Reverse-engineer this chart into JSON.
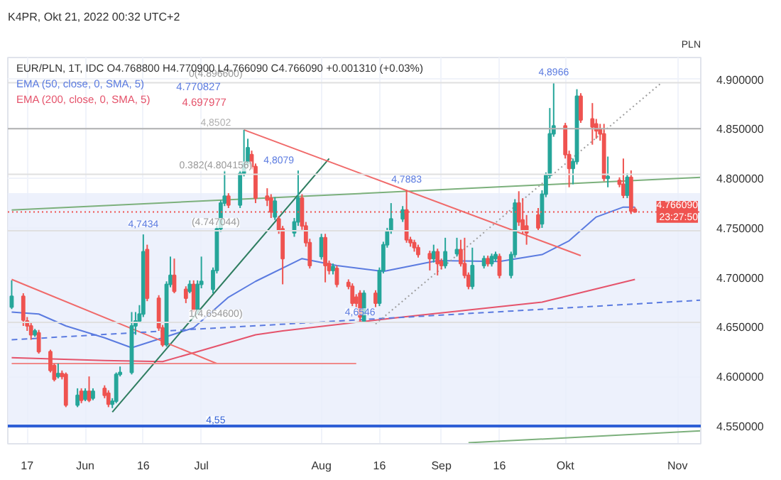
{
  "chart_data": {
    "type": "candlestick",
    "title": "K4PR, Okt 21, 2022 00:32 UTC+2",
    "subtitle": "EUR/PLN, 1T, IDC O4.768800 H4.770900 L4.766090 C4.766090 +0.001310 (+0.03%)",
    "ylabel": "PLN",
    "x": [
      "2022-05-13",
      "2022-05-16",
      "2022-05-17",
      "2022-05-18",
      "2022-05-19",
      "2022-05-20",
      "2022-05-23",
      "2022-05-24",
      "2022-05-25",
      "2022-05-26",
      "2022-05-27",
      "2022-05-30",
      "2022-05-31",
      "2022-06-01",
      "2022-06-02",
      "2022-06-03",
      "2022-06-06",
      "2022-06-07",
      "2022-06-08",
      "2022-06-09",
      "2022-06-10",
      "2022-06-13",
      "2022-06-14",
      "2022-06-15",
      "2022-06-16",
      "2022-06-17",
      "2022-06-20",
      "2022-06-21",
      "2022-06-22",
      "2022-06-23",
      "2022-06-24",
      "2022-06-27",
      "2022-06-28",
      "2022-06-29",
      "2022-06-30",
      "2022-07-01",
      "2022-07-04",
      "2022-07-05",
      "2022-07-06",
      "2022-07-07",
      "2022-07-08",
      "2022-07-11",
      "2022-07-12",
      "2022-07-13",
      "2022-07-14",
      "2022-07-15",
      "2022-07-18",
      "2022-07-19",
      "2022-07-20",
      "2022-07-21",
      "2022-07-22",
      "2022-07-25",
      "2022-07-26",
      "2022-07-27",
      "2022-07-28",
      "2022-07-29",
      "2022-08-01",
      "2022-08-02",
      "2022-08-03",
      "2022-08-04",
      "2022-08-05",
      "2022-08-08",
      "2022-08-09",
      "2022-08-10",
      "2022-08-11",
      "2022-08-12",
      "2022-08-15",
      "2022-08-16",
      "2022-08-17",
      "2022-08-18",
      "2022-08-19",
      "2022-08-22",
      "2022-08-23",
      "2022-08-24",
      "2022-08-25",
      "2022-08-26",
      "2022-08-29",
      "2022-08-30",
      "2022-08-31",
      "2022-09-01",
      "2022-09-02",
      "2022-09-05",
      "2022-09-06",
      "2022-09-07",
      "2022-09-08",
      "2022-09-09",
      "2022-09-12",
      "2022-09-13",
      "2022-09-14",
      "2022-09-15",
      "2022-09-16",
      "2022-09-19",
      "2022-09-20",
      "2022-09-21",
      "2022-09-22",
      "2022-09-23",
      "2022-09-26",
      "2022-09-27",
      "2022-09-28",
      "2022-09-29",
      "2022-09-30",
      "2022-10-03",
      "2022-10-04",
      "2022-10-05",
      "2022-10-06",
      "2022-10-07",
      "2022-10-10",
      "2022-10-11",
      "2022-10-12",
      "2022-10-13",
      "2022-10-14",
      "2022-10-17",
      "2022-10-18",
      "2022-10-19",
      "2022-10-20",
      "2022-10-21"
    ],
    "ohlc": [
      [
        4.67,
        4.697,
        4.668,
        4.681
      ],
      [
        4.681,
        4.684,
        4.651,
        4.657
      ],
      [
        4.656,
        4.66,
        4.646,
        4.651
      ],
      [
        4.651,
        4.655,
        4.637,
        4.642
      ],
      [
        4.642,
        4.648,
        4.64,
        4.646
      ],
      [
        4.644,
        4.647,
        4.623,
        4.625
      ],
      [
        4.625,
        4.627,
        4.604,
        4.606
      ],
      [
        4.611,
        4.613,
        4.595,
        4.597
      ],
      [
        4.6,
        4.613,
        4.598,
        4.603
      ],
      [
        4.603,
        4.606,
        4.597,
        4.6
      ],
      [
        4.602,
        4.604,
        4.569,
        4.571
      ],
      [
        4.571,
        4.588,
        4.569,
        4.581
      ],
      [
        4.585,
        4.588,
        4.573,
        4.576
      ],
      [
        4.577,
        4.588,
        4.575,
        4.585
      ],
      [
        4.585,
        4.6,
        4.574,
        4.576
      ],
      [
        4.578,
        4.588,
        4.576,
        4.585
      ],
      [
        4.588,
        4.591,
        4.578,
        4.581
      ],
      [
        4.583,
        4.586,
        4.569,
        4.572
      ],
      [
        4.572,
        4.578,
        4.568,
        4.575
      ],
      [
        4.575,
        4.604,
        4.573,
        4.602
      ],
      [
        4.602,
        4.61,
        4.6,
        4.604
      ],
      [
        4.604,
        4.665,
        4.602,
        4.651
      ],
      [
        4.651,
        4.665,
        4.642,
        4.656
      ],
      [
        4.656,
        4.672,
        4.654,
        4.663
      ],
      [
        4.663,
        4.7434,
        4.66,
        4.726
      ],
      [
        4.728,
        4.733,
        4.676,
        4.679
      ],
      [
        4.679,
        4.682,
        4.646,
        4.649
      ],
      [
        4.649,
        4.652,
        4.63,
        4.632
      ],
      [
        4.632,
        4.696,
        4.63,
        4.693
      ],
      [
        4.693,
        4.721,
        4.69,
        4.702
      ],
      [
        4.702,
        4.719,
        4.684,
        4.686
      ],
      [
        4.688,
        4.691,
        4.674,
        4.679
      ],
      [
        4.686,
        4.697,
        4.684,
        4.693
      ],
      [
        4.693,
        4.697,
        4.665,
        4.667
      ],
      [
        4.667,
        4.697,
        4.663,
        4.693
      ],
      [
        4.693,
        4.721,
        4.689,
        4.696
      ],
      [
        4.688,
        4.71,
        4.684,
        4.707
      ],
      [
        4.707,
        4.752,
        4.704,
        4.749
      ],
      [
        4.749,
        4.778,
        4.746,
        4.775
      ],
      [
        4.775,
        4.808,
        4.772,
        4.782
      ],
      [
        4.782,
        4.785,
        4.77,
        4.773
      ],
      [
        4.773,
        4.808,
        4.77,
        4.805
      ],
      [
        4.805,
        4.849,
        4.802,
        4.815
      ],
      [
        4.815,
        4.84,
        4.812,
        4.831
      ],
      [
        4.824,
        4.828,
        4.809,
        4.812
      ],
      [
        4.812,
        4.815,
        4.775,
        4.78
      ],
      [
        4.782,
        4.79,
        4.772,
        4.778
      ],
      [
        4.78,
        4.784,
        4.76,
        4.766
      ],
      [
        4.761,
        4.781,
        4.758,
        4.777
      ],
      [
        4.759,
        4.762,
        4.744,
        4.747
      ],
      [
        4.749,
        4.752,
        4.693,
        4.719
      ],
      [
        4.745,
        4.76,
        4.741,
        4.756
      ],
      [
        4.756,
        4.8079,
        4.752,
        4.78
      ],
      [
        4.78,
        4.784,
        4.748,
        4.752
      ],
      [
        4.752,
        4.756,
        4.731,
        4.735
      ],
      [
        4.735,
        4.739,
        4.709,
        4.712
      ],
      [
        4.721,
        4.744,
        4.718,
        4.74
      ],
      [
        4.74,
        4.744,
        4.695,
        4.712
      ],
      [
        4.714,
        4.717,
        4.703,
        4.707
      ],
      [
        4.707,
        4.714,
        4.703,
        4.711
      ],
      [
        4.709,
        4.712,
        4.69,
        4.693
      ],
      [
        4.695,
        4.698,
        4.688,
        4.691
      ],
      [
        4.691,
        4.694,
        4.671,
        4.674
      ],
      [
        4.68,
        4.683,
        4.67,
        4.674
      ],
      [
        4.684,
        4.687,
        4.6546,
        4.66
      ],
      [
        4.656,
        4.687,
        4.6555,
        4.684
      ],
      [
        4.684,
        4.687,
        4.67,
        4.674
      ],
      [
        4.674,
        4.71,
        4.671,
        4.707
      ],
      [
        4.707,
        4.736,
        4.704,
        4.733
      ],
      [
        4.733,
        4.75,
        4.73,
        4.747
      ],
      [
        4.747,
        4.775,
        4.744,
        4.759
      ],
      [
        4.759,
        4.772,
        4.756,
        4.768
      ],
      [
        4.768,
        4.7883,
        4.735,
        4.738
      ],
      [
        4.738,
        4.741,
        4.731,
        4.735
      ],
      [
        4.735,
        4.738,
        4.726,
        4.73
      ],
      [
        4.73,
        4.733,
        4.72,
        4.723
      ],
      [
        4.724,
        4.727,
        4.707,
        4.719
      ],
      [
        4.719,
        4.733,
        4.715,
        4.726
      ],
      [
        4.726,
        4.729,
        4.702,
        4.714
      ],
      [
        4.716,
        4.719,
        4.708,
        4.712
      ],
      [
        4.712,
        4.74,
        4.709,
        4.726
      ],
      [
        4.724,
        4.74,
        4.721,
        4.728
      ],
      [
        4.728,
        4.738,
        4.711,
        4.714
      ],
      [
        4.714,
        4.74,
        4.699,
        4.702
      ],
      [
        4.702,
        4.705,
        4.688,
        4.691
      ],
      [
        4.691,
        4.73,
        4.688,
        4.712
      ],
      [
        4.712,
        4.722,
        4.709,
        4.719
      ],
      [
        4.719,
        4.722,
        4.711,
        4.714
      ],
      [
        4.714,
        4.724,
        4.711,
        4.721
      ],
      [
        4.719,
        4.726,
        4.716,
        4.723
      ],
      [
        4.721,
        4.724,
        4.699,
        4.702
      ],
      [
        4.702,
        4.726,
        4.699,
        4.723
      ],
      [
        4.723,
        4.779,
        4.72,
        4.775
      ],
      [
        4.775,
        4.787,
        4.752,
        4.756
      ],
      [
        4.758,
        4.78,
        4.744,
        4.748
      ],
      [
        4.752,
        4.763,
        4.733,
        4.745
      ],
      [
        4.763,
        4.77,
        4.747,
        4.75
      ],
      [
        4.754,
        4.788,
        4.75,
        4.784
      ],
      [
        4.784,
        4.806,
        4.781,
        4.803
      ],
      [
        4.803,
        4.871,
        4.8,
        4.845
      ],
      [
        4.845,
        4.8966,
        4.842,
        4.853
      ],
      [
        4.853,
        4.856,
        4.82,
        4.824
      ],
      [
        4.824,
        4.828,
        4.791,
        4.81
      ],
      [
        4.81,
        4.82,
        4.794,
        4.817
      ],
      [
        4.817,
        4.89,
        4.814,
        4.883
      ],
      [
        4.883,
        4.886,
        4.856,
        4.859
      ],
      [
        4.86,
        4.876,
        4.834,
        4.852
      ],
      [
        4.855,
        4.86,
        4.84,
        4.848
      ],
      [
        4.85,
        4.855,
        4.838,
        4.845
      ],
      [
        4.845,
        4.855,
        4.797,
        4.8
      ],
      [
        4.8,
        4.822,
        4.791,
        4.802
      ],
      [
        4.798,
        4.801,
        4.791,
        4.794
      ],
      [
        4.794,
        4.82,
        4.78,
        4.783
      ],
      [
        4.783,
        4.805,
        4.78,
        4.801
      ],
      [
        4.801,
        4.808,
        4.764,
        4.767
      ],
      [
        4.7688,
        4.7709,
        4.76609,
        4.76609
      ]
    ],
    "series": [
      {
        "name": "EMA (50, close, 0, SMA, 5)",
        "type": "line",
        "color": "#5b7be0",
        "x": [
          "2022-05-13",
          "2022-05-20",
          "2022-05-27",
          "2022-06-06",
          "2022-06-13",
          "2022-06-21",
          "2022-06-29",
          "2022-07-08",
          "2022-07-15",
          "2022-07-27",
          "2022-08-05",
          "2022-08-17",
          "2022-08-31",
          "2022-09-16",
          "2022-09-27",
          "2022-10-04",
          "2022-10-11",
          "2022-10-18",
          "2022-10-21"
        ],
        "values": [
          4.665,
          4.663,
          4.651,
          4.639,
          4.629,
          4.639,
          4.649,
          4.68,
          4.696,
          4.719,
          4.712,
          4.706,
          4.717,
          4.716,
          4.723,
          4.737,
          4.761,
          4.771,
          4.770827
        ]
      },
      {
        "name": "EMA (200, close, 0, SMA, 5)",
        "type": "line",
        "color": "#e5536b",
        "x": [
          "2022-05-13",
          "2022-06-06",
          "2022-06-21",
          "2022-06-30",
          "2022-07-15",
          "2022-07-22",
          "2022-08-22",
          "2022-09-27",
          "2022-10-21"
        ],
        "values": [
          4.619,
          4.616,
          4.615,
          4.625,
          4.642,
          4.646,
          4.66,
          4.675,
          4.697977
        ]
      },
      {
        "type": "line",
        "color": "#7cb07c",
        "x": [
          "2022-05-13",
          "2022-11-07"
        ],
        "values": [
          4.768,
          4.801
        ]
      },
      {
        "type": "line",
        "color": "#2e7d60",
        "x": [
          "2022-06-08",
          "2022-08-03"
        ],
        "values": [
          4.564,
          4.82
        ]
      },
      {
        "type": "line",
        "color": "#f06a6a",
        "x": [
          "2022-05-13",
          "2022-07-05"
        ],
        "values": [
          4.698,
          4.613
        ]
      },
      {
        "type": "line",
        "color": "#f06a6a",
        "x": [
          "2022-07-12",
          "2022-10-07"
        ],
        "values": [
          4.849,
          4.722
        ]
      },
      {
        "type": "line",
        "color": "#f08a8a",
        "x": [
          "2022-05-13",
          "2022-08-10"
        ],
        "values": [
          4.613,
          4.613
        ]
      },
      {
        "type": "line",
        "color": "#5b7be0",
        "line_style": "dashed",
        "x": [
          "2022-05-13",
          "2022-11-07"
        ],
        "values": [
          4.637,
          4.677
        ]
      },
      {
        "type": "line",
        "color": "#9e9e9e",
        "line_style": "dotted",
        "x": [
          "2022-08-15",
          "2022-10-28"
        ],
        "values": [
          4.653,
          4.897
        ]
      },
      {
        "type": "line",
        "color": "#7cb07c",
        "x": [
          "2022-09-08",
          "2022-11-07"
        ],
        "values": [
          4.533,
          4.545
        ]
      }
    ],
    "ref_lines": [
      {
        "axis": "y",
        "value": 4.8502,
        "label": "4,8502",
        "color": "#b0b0b0"
      },
      {
        "axis": "y",
        "value": 4.55,
        "label": "4,55",
        "color": "#2f5fd6"
      },
      {
        "axis": "y",
        "value": 4.8966,
        "label": "0(4.896600)",
        "color": "#e0e0e0"
      },
      {
        "axis": "y",
        "value": 4.804156,
        "label": "0.382(4.804156)",
        "color": "#e0e0e0"
      },
      {
        "axis": "y",
        "value": 4.747044,
        "label": "(4.747044)",
        "color": "#e0e0e0"
      },
      {
        "axis": "y",
        "value": 4.6546,
        "label": "1(4.654600)",
        "color": "#e0e0e0"
      },
      {
        "axis": "y",
        "value": 4.76609,
        "label": "4.766090 23:27:50",
        "color": "#ef5350",
        "line_style": "dotted"
      }
    ],
    "bands": [
      {
        "axis": "y",
        "from": 4.55,
        "to": 4.785,
        "color": "#e9edfb"
      }
    ],
    "annotations": [
      "4.770827",
      "4.697977",
      {
        "text": "4,7434",
        "x": "2022-06-16",
        "y": 4.7434
      },
      {
        "text": "4,8079",
        "x": "2022-07-21",
        "y": 4.8079
      },
      {
        "text": "4,7883",
        "x": "2022-08-23",
        "y": 4.7883
      },
      {
        "text": "4,6546",
        "x": "2022-08-11",
        "y": 4.6546
      },
      {
        "text": "4,8966",
        "x": "2022-09-30",
        "y": 4.8966
      }
    ],
    "xlim": [
      "2022-05-12",
      "2022-11-07"
    ],
    "ylim": [
      4.532,
      4.922
    ],
    "xticks": [
      {
        "value": "2022-05-17",
        "label": "17"
      },
      {
        "value": "2022-06-01",
        "label": "Jun"
      },
      {
        "value": "2022-06-16",
        "label": "16"
      },
      {
        "value": "2022-07-01",
        "label": "Jul"
      },
      {
        "value": "2022-08-01",
        "label": "Aug"
      },
      {
        "value": "2022-08-16",
        "label": "16"
      },
      {
        "value": "2022-09-01",
        "label": "Sep"
      },
      {
        "value": "2022-09-16",
        "label": "16"
      },
      {
        "value": "2022-10-03",
        "label": "Okt"
      },
      {
        "value": "2022-11-01",
        "label": "Nov"
      }
    ],
    "yticks": [
      {
        "value": 4.55,
        "label": "4.550000"
      },
      {
        "value": 4.6,
        "label": "4.600000"
      },
      {
        "value": 4.65,
        "label": "4.650000"
      },
      {
        "value": 4.7,
        "label": "4.700000"
      },
      {
        "value": 4.75,
        "label": "4.750000"
      },
      {
        "value": 4.8,
        "label": "4.800000"
      },
      {
        "value": 4.85,
        "label": "4.850000"
      },
      {
        "value": 4.9,
        "label": "4.900000"
      }
    ],
    "grid": true,
    "legend": "top left"
  }
}
